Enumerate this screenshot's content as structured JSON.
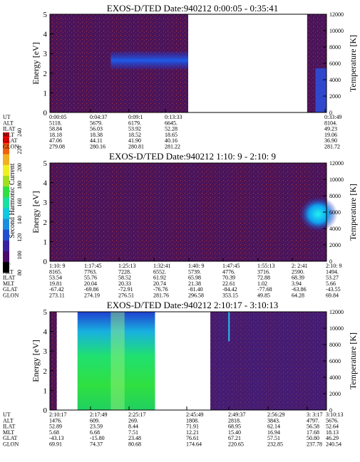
{
  "colors": {
    "scale": [
      "#000000",
      "#4a0a6a",
      "#3a1fa0",
      "#1f4fd0",
      "#1a8fe0",
      "#10c8e0",
      "#18e0a0",
      "#30e040",
      "#a0e020",
      "#f0f020",
      "#f0b020",
      "#f06010",
      "#ff0000"
    ],
    "background": "#4a1458",
    "speckle": "#c83a2a"
  },
  "colorbar": {
    "label": "Second Harmonic Current",
    "ticks": [
      "80",
      "100",
      "120",
      "140",
      "160",
      "180",
      "200",
      "220",
      "240"
    ]
  },
  "chart_data": [
    {
      "type": "heatmap",
      "title": "EXOS-D/TED   Date:940212  0:00:05 - 0:35:41",
      "ylabel": "Energy [eV]",
      "ylabel_right": "Temperature [K]",
      "ylim": [
        0,
        5
      ],
      "ylim_right": [
        0,
        12000
      ],
      "yticks": [
        "0",
        "1",
        "2",
        "3",
        "4",
        "5"
      ],
      "yticks_right": [
        "0",
        "2000",
        "4000",
        "6000",
        "8000",
        "10000",
        "12000"
      ],
      "row_labels": [
        "UT",
        "ALT",
        "ILAT",
        "MLT",
        "GLAT",
        "GLON"
      ],
      "columns": [
        [
          "0:00:05",
          "5118.",
          "58.84",
          "18.18",
          "47.06",
          "279.08"
        ],
        [
          "0:04:37",
          "5679.",
          "56.03",
          "18.38",
          "44.11",
          "280.16"
        ],
        [
          "0:09:1",
          "6179.",
          "53.92",
          "18.52",
          "41.90",
          "280.81"
        ],
        [
          "0:13:33",
          "6645.",
          "52.28",
          "18.65",
          "40.16",
          "281.22"
        ],
        [
          "0:33:49",
          "8104.",
          "49.23",
          "19.06",
          "36.90",
          "281.72"
        ]
      ],
      "gaps": [
        [
          0.5,
          0.93
        ]
      ],
      "features": [
        "blue band 2.2-3.1 eV from 0.25 to 0.5"
      ]
    },
    {
      "type": "heatmap",
      "title": "EXOS-D/TED   Date:940212  1:10: 9 - 2:10: 9",
      "ylabel": "Energy [eV]",
      "ylabel_right": "Temperature [K]",
      "ylim": [
        0,
        5
      ],
      "ylim_right": [
        0,
        12000
      ],
      "yticks": [
        "0",
        "1",
        "2",
        "3",
        "4",
        "5"
      ],
      "yticks_right": [
        "0",
        "2000",
        "4000",
        "6000",
        "8000",
        "10000",
        "12000"
      ],
      "row_labels": [
        "UT",
        "ALT",
        "ILAT",
        "MLT",
        "GLAT",
        "GLON"
      ],
      "columns": [
        [
          "1:10: 9",
          "8165.",
          "53.54",
          "19.81",
          "-67.42",
          "273.11"
        ],
        [
          "1:17:45",
          "7763.",
          "55.76",
          "20.04",
          "-69.86",
          "274.19"
        ],
        [
          "1:25:13",
          "7228.",
          "58.52",
          "20.33",
          "-72.91",
          "276.51"
        ],
        [
          "1:32:41",
          "6552.",
          "61.92",
          "20.74",
          "-76.76",
          "281.76"
        ],
        [
          "1:40: 9",
          "5739.",
          "65.98",
          "21.38",
          "-81.40",
          "296.58"
        ],
        [
          "1:47:45",
          "4776.",
          "70.39",
          "22.61",
          "-84.42",
          "353.15"
        ],
        [
          "1:55:13",
          "3716.",
          "72.88",
          "1.02",
          "-77.68",
          "49.85"
        ],
        [
          "2: 2:41",
          "2590.",
          "68.39",
          "3.94",
          "-63.86",
          "64.28"
        ],
        [
          "2:10: 9",
          "1494.",
          "53.27",
          "5.66",
          "-43.55",
          "69.84"
        ]
      ],
      "gaps": [],
      "features": [
        "cyan/blue blob 1.5-3.5 eV near end"
      ]
    },
    {
      "type": "heatmap",
      "title": "EXOS-D/TED   Date:940212  2:10:17 - 3:10:13",
      "ylabel": "Energy [eV]",
      "ylabel_right": "Temperature [K]",
      "ylim": [
        0,
        5
      ],
      "ylim_right": [
        0,
        12000
      ],
      "yticks": [
        "0",
        "1",
        "2",
        "3",
        "4",
        "5"
      ],
      "yticks_right": [
        "0",
        "2000",
        "4000",
        "6000",
        "8000",
        "10000",
        "12000"
      ],
      "row_labels": [
        "UT",
        "ALT",
        "ILAT",
        "MLT",
        "GLAT",
        "GLON"
      ],
      "columns": [
        [
          "2:10:17",
          "1476.",
          "52.89",
          "5.68",
          "-43.13",
          "69.91"
        ],
        [
          "2:17:49",
          "609.",
          "23.59",
          "6.68",
          "-15.80",
          "74.37"
        ],
        [
          "2:25:17",
          "269.",
          "8.44",
          "7.51",
          "23.48",
          "80.68"
        ],
        [
          "2:45:49",
          "1808.",
          "71.91",
          "12.21",
          "76.61",
          "174.64"
        ],
        [
          "2:49:37",
          "2818.",
          "68.95",
          "15.40",
          "67.21",
          "220.65"
        ],
        [
          "2:56:29",
          "3843.",
          "62.14",
          "16.94",
          "57.51",
          "232.85"
        ],
        [
          "3: 3:17",
          "4797.",
          "56.58",
          "17.68",
          "50.80",
          "237.78"
        ],
        [
          "3:10:13",
          "5676.",
          "52.64",
          "18.13",
          "46.29",
          "240.54"
        ]
      ],
      "gaps": [
        [
          0.025,
          0.1
        ],
        [
          0.38,
          0.58
        ]
      ],
      "features": [
        "green/cyan burst 0.1-0.38 all energies"
      ]
    }
  ]
}
